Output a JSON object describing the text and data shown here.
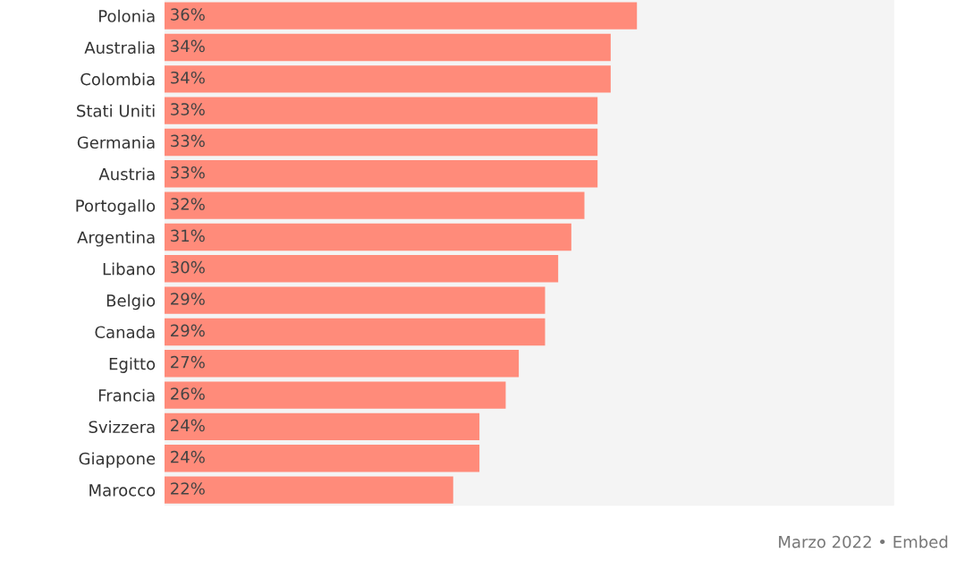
{
  "chart_data": {
    "type": "bar",
    "orientation": "horizontal",
    "categories": [
      "Polonia",
      "Australia",
      "Colombia",
      "Stati Uniti",
      "Germania",
      "Austria",
      "Portogallo",
      "Argentina",
      "Libano",
      "Belgio",
      "Canada",
      "Egitto",
      "Francia",
      "Svizzera",
      "Giappone",
      "Marocco"
    ],
    "values": [
      36,
      34,
      34,
      33,
      33,
      33,
      32,
      31,
      30,
      29,
      29,
      27,
      26,
      24,
      24,
      22
    ],
    "value_labels": [
      "36%",
      "34%",
      "34%",
      "33%",
      "33%",
      "33%",
      "32%",
      "31%",
      "30%",
      "29%",
      "29%",
      "27%",
      "26%",
      "24%",
      "24%",
      "22%"
    ],
    "color": "#ff8b7a",
    "xlim": [
      0,
      55.6
    ],
    "tick_labels": "y",
    "grid": false,
    "annotations": [
      "Marzo 2022 • Embed"
    ]
  }
}
